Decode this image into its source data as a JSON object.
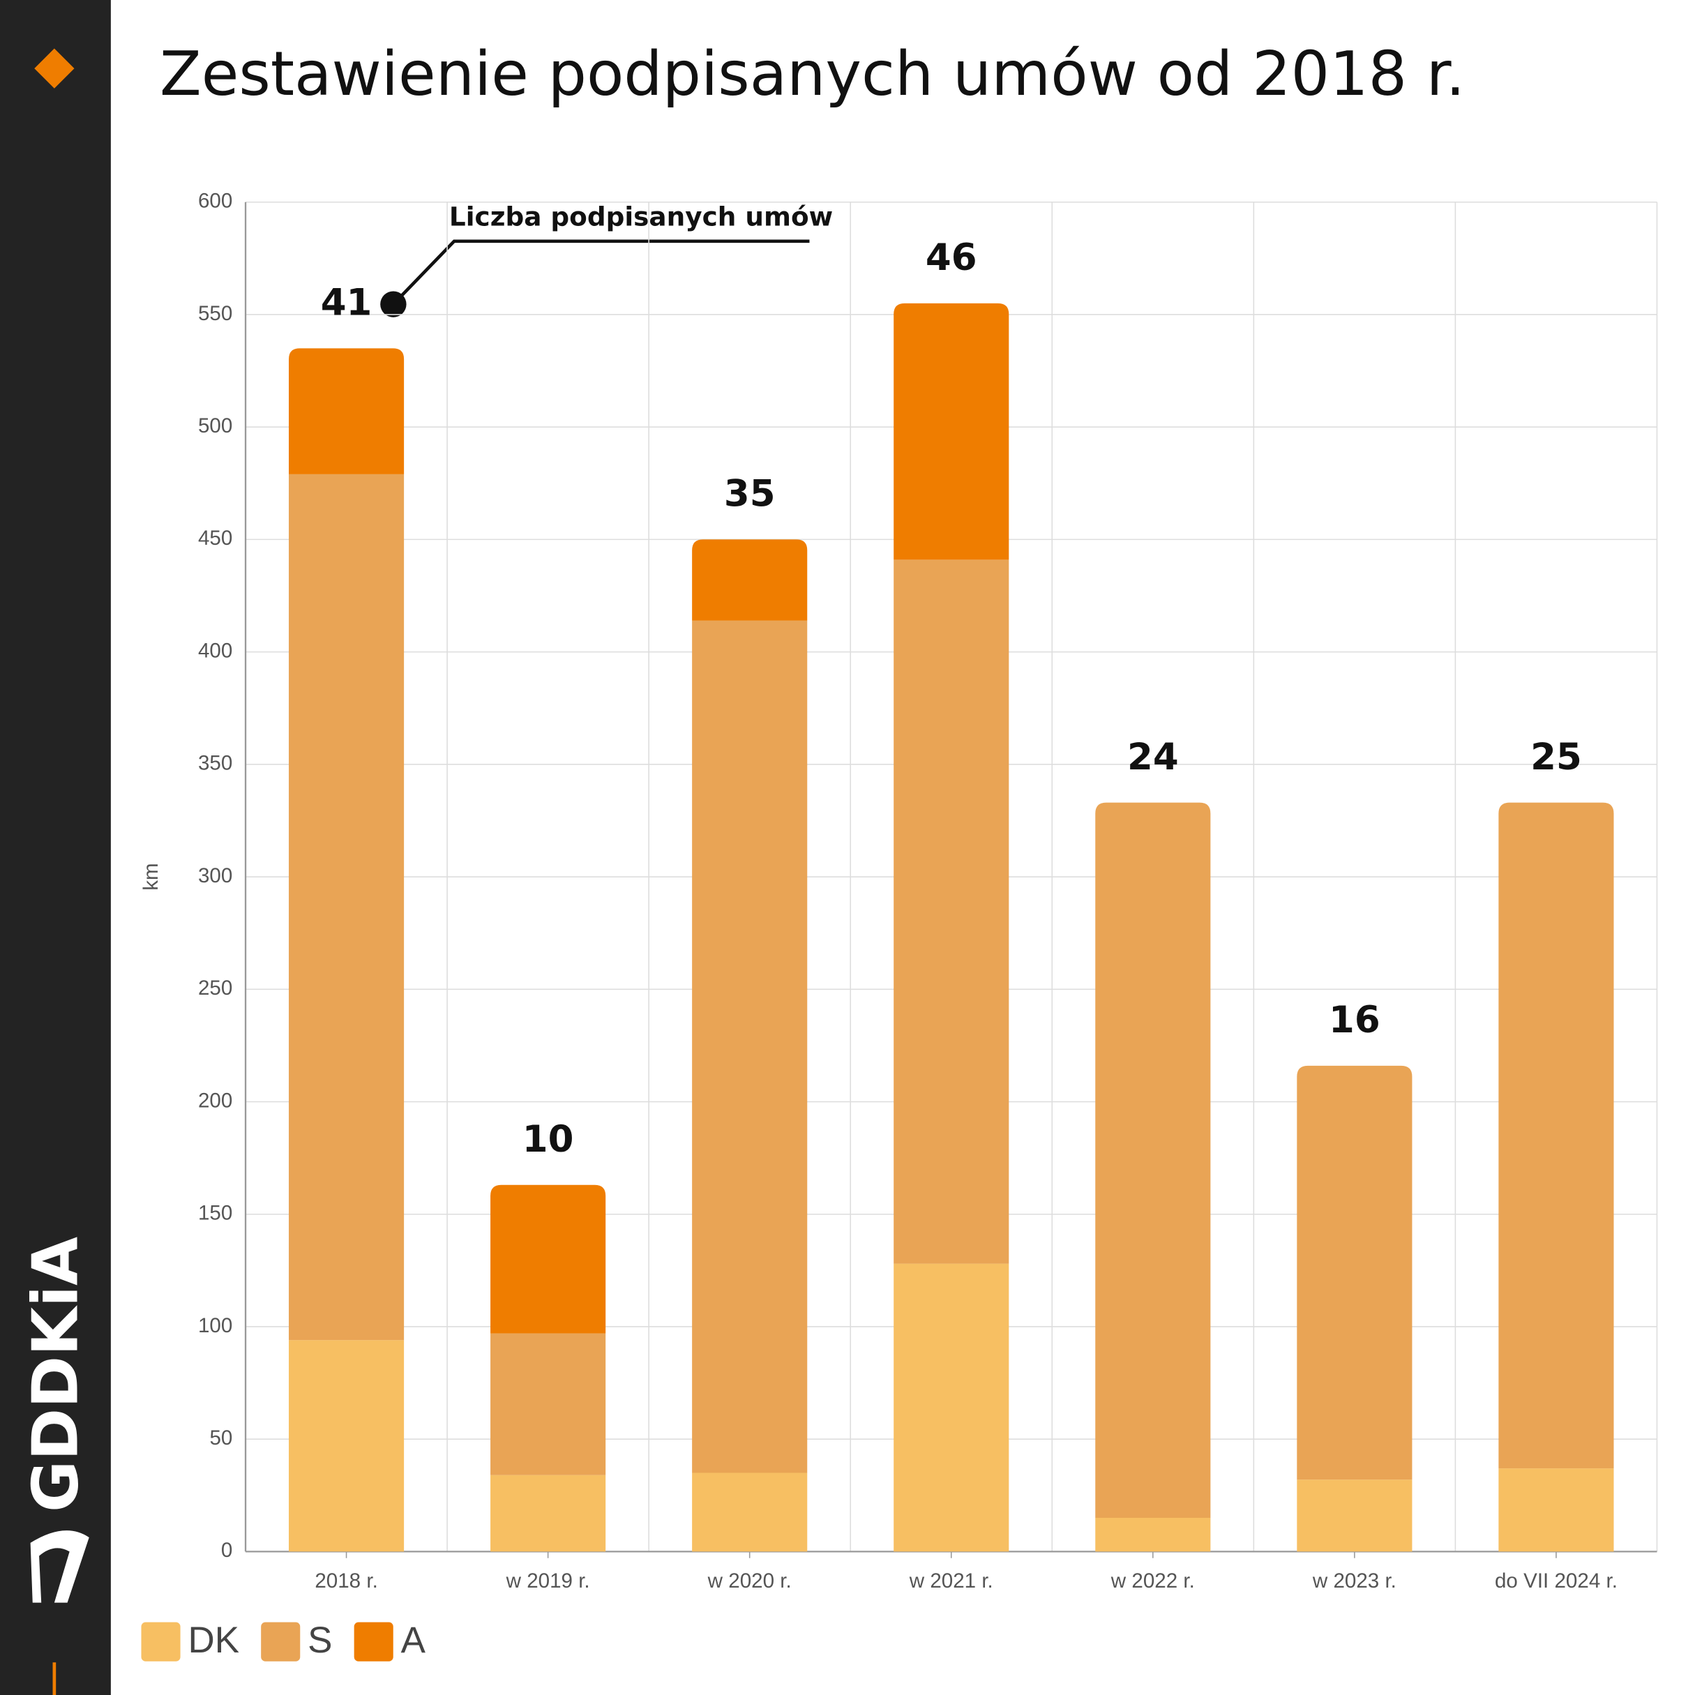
{
  "chart_data": {
    "type": "bar",
    "stacked": true,
    "title": "Zestawienie podpisanych umów od 2018 r.",
    "y_label": "km",
    "annotation": "Liczba podpisanych umów",
    "categories": [
      "2018 r.",
      "w 2019 r.",
      "w 2020 r.",
      "w 2021 r.",
      "w 2022 r.",
      "w 2023 r.",
      "do VII 2024 r."
    ],
    "series": [
      {
        "name": "DK",
        "color": "#f7bf62",
        "values": [
          94,
          34,
          35,
          128,
          15,
          32,
          37
        ]
      },
      {
        "name": "S",
        "color": "#e9a455",
        "values": [
          385,
          63,
          379,
          313,
          318,
          184,
          296
        ]
      },
      {
        "name": "A",
        "color": "#ef7d00",
        "values": [
          56,
          66,
          36,
          114,
          0,
          0,
          0
        ]
      }
    ],
    "counts": [
      41,
      10,
      35,
      46,
      24,
      16,
      25
    ],
    "ylim": [
      0,
      600
    ],
    "yticks": [
      0,
      50,
      100,
      150,
      200,
      250,
      300,
      350,
      400,
      450,
      500,
      550,
      600
    ],
    "grid": true,
    "brand": "GDDKiA"
  }
}
